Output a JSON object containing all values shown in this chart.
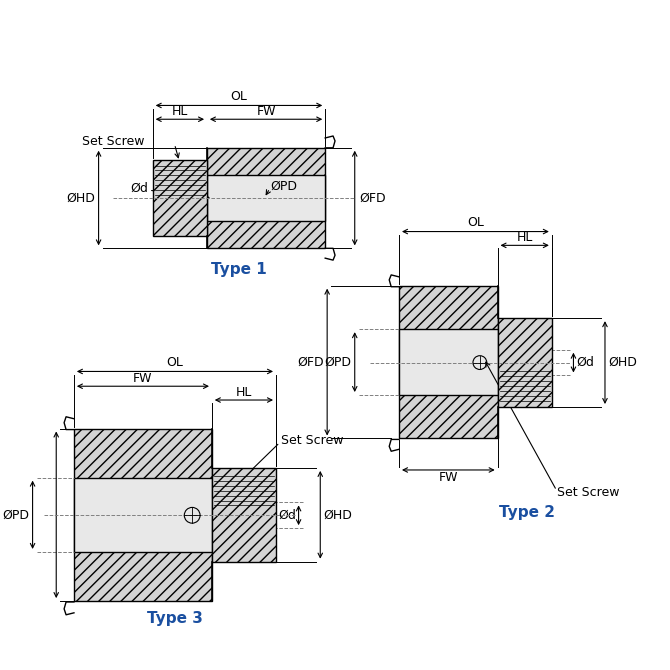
{
  "bg_color": "#ffffff",
  "fill_color": "#d4d4d4",
  "fill_light": "#e8e8e8",
  "line_color": "#000000",
  "label_color": "#1a4fa0",
  "dim_color": "#000000",
  "type1_label": "Type 1",
  "type2_label": "Type 2",
  "type3_label": "Type 3",
  "dim_fontsize": 9,
  "label_fontsize": 11
}
